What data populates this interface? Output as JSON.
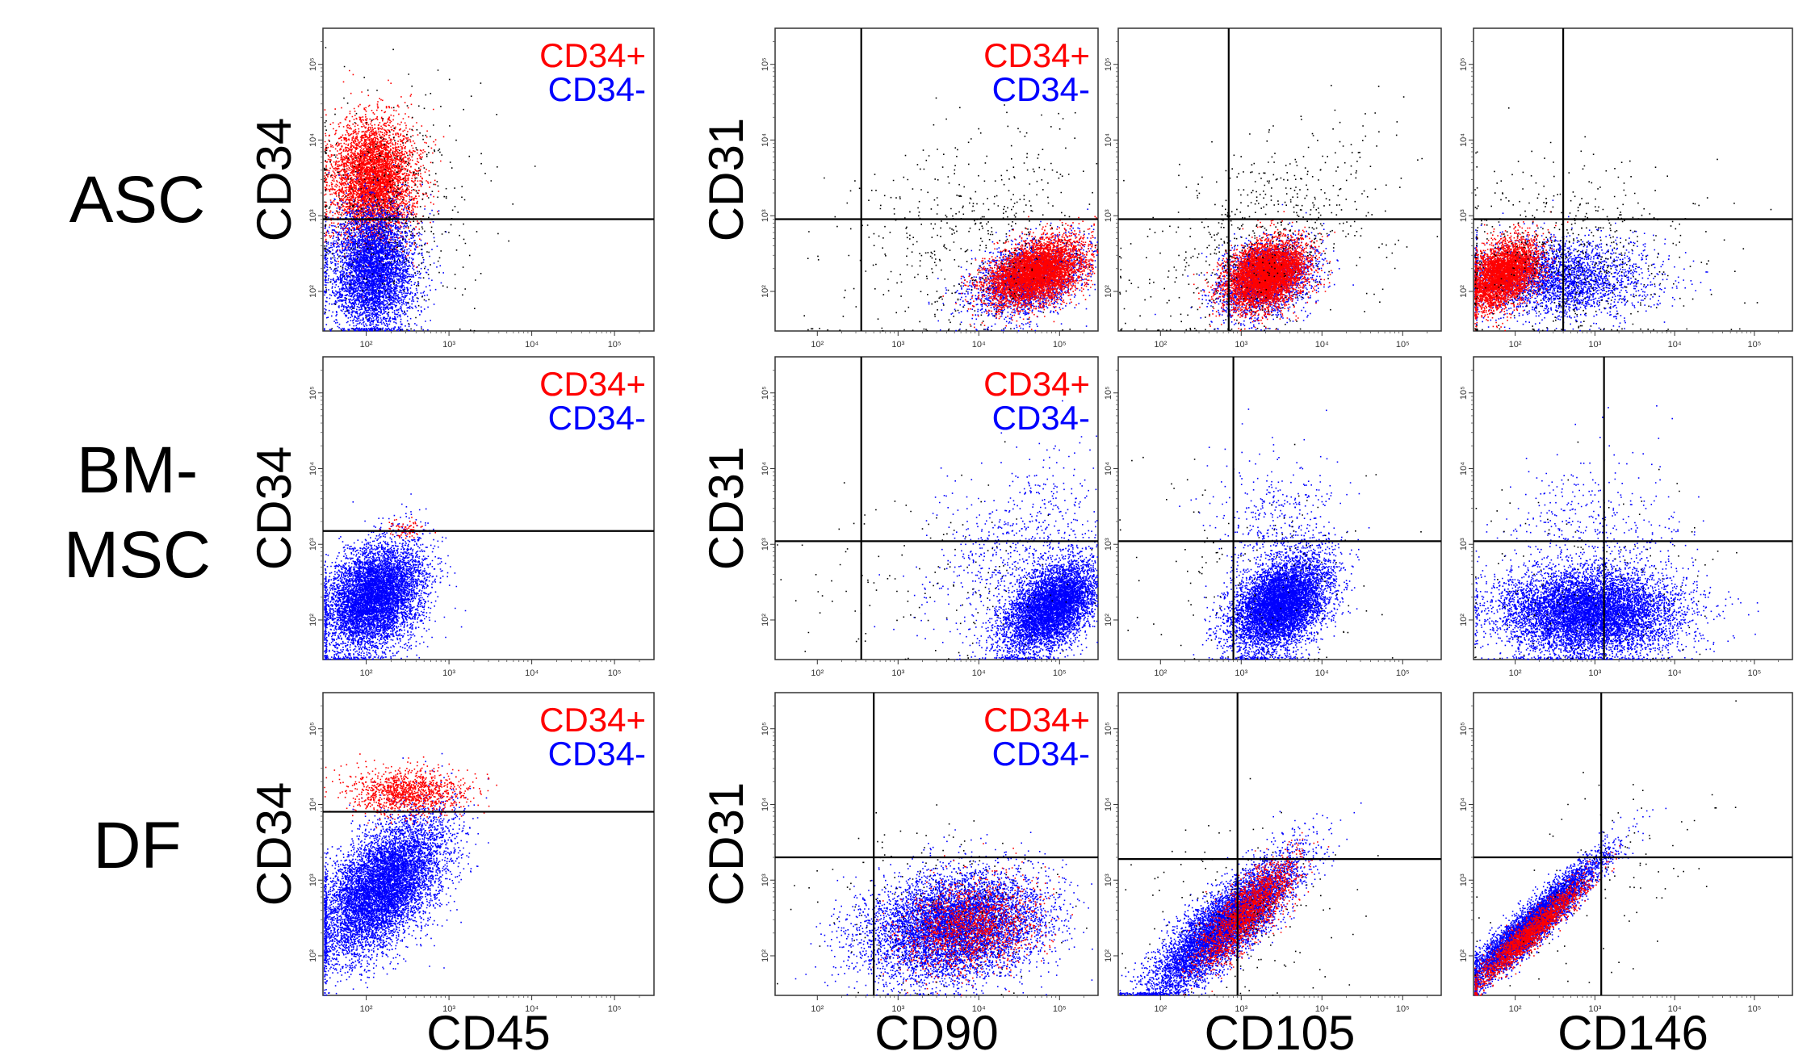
{
  "colors": {
    "pos": "#ff0000",
    "neg": "#0000ff",
    "other": "#000000"
  },
  "rows": [
    {
      "label_lines": [
        "ASC"
      ]
    },
    {
      "label_lines": [
        "BM-",
        "MSC"
      ]
    },
    {
      "label_lines": [
        "DF"
      ]
    }
  ],
  "x_axis_labels": [
    "CD45",
    "CD90",
    "CD105",
    "CD146"
  ],
  "y_axis_labels": [
    "CD34",
    "CD31",
    "",
    "",
    "CD34",
    "CD31",
    "",
    "",
    "CD34",
    "CD31",
    "",
    ""
  ],
  "legend": {
    "pos": "CD34+",
    "neg": "CD34-"
  },
  "chart_data": {
    "type": "scatter",
    "xscale": "log",
    "yscale": "log",
    "xlim": [
      30,
      300000
    ],
    "ylim": [
      30,
      300000
    ],
    "xticks": [
      "10²",
      "10³",
      "10⁴",
      "10⁵"
    ],
    "yticks": [
      "10²",
      "10³",
      "10⁴",
      "10⁵"
    ],
    "panels": [
      {
        "row": 0,
        "col": 0,
        "xlabel": "",
        "ylabel": "CD34",
        "legend": true,
        "gate_x": null,
        "gate_y": 900,
        "clusters": [
          {
            "color": "pos",
            "n": 5000,
            "cx": 120,
            "cy": 3000,
            "sx": 0.25,
            "sy": 0.4,
            "rho": 0
          },
          {
            "color": "neg",
            "n": 5000,
            "cx": 120,
            "cy": 200,
            "sx": 0.25,
            "sy": 0.4,
            "rho": 0
          },
          {
            "color": "other",
            "n": 500,
            "cx": 180,
            "cy": 1200,
            "sx": 0.55,
            "sy": 0.75,
            "rho": 0
          }
        ]
      },
      {
        "row": 0,
        "col": 1,
        "xlabel": "",
        "ylabel": "CD31",
        "legend": true,
        "gate_x": 350,
        "gate_y": 900,
        "clusters": [
          {
            "color": "neg",
            "n": 2500,
            "cx": 40000,
            "cy": 150,
            "sx": 0.35,
            "sy": 0.25,
            "rho": 0.4
          },
          {
            "color": "pos",
            "n": 5000,
            "cx": 50000,
            "cy": 180,
            "sx": 0.3,
            "sy": 0.22,
            "rho": 0.4
          },
          {
            "color": "other",
            "n": 500,
            "cx": 8000,
            "cy": 500,
            "sx": 0.8,
            "sy": 0.7,
            "rho": 0.3
          }
        ]
      },
      {
        "row": 0,
        "col": 2,
        "xlabel": "",
        "ylabel": "",
        "legend": false,
        "gate_x": 700,
        "gate_y": 900,
        "clusters": [
          {
            "color": "neg",
            "n": 2500,
            "cx": 2000,
            "cy": 150,
            "sx": 0.3,
            "sy": 0.25,
            "rho": 0.3
          },
          {
            "color": "pos",
            "n": 5000,
            "cx": 2000,
            "cy": 170,
            "sx": 0.25,
            "sy": 0.22,
            "rho": 0.3
          },
          {
            "color": "other",
            "n": 600,
            "cx": 2000,
            "cy": 600,
            "sx": 0.8,
            "sy": 0.7,
            "rho": 0.5
          }
        ]
      },
      {
        "row": 0,
        "col": 3,
        "xlabel": "",
        "ylabel": "",
        "legend": false,
        "gate_x": 400,
        "gate_y": 900,
        "clusters": [
          {
            "color": "neg",
            "n": 3000,
            "cx": 300,
            "cy": 150,
            "sx": 0.6,
            "sy": 0.25,
            "rho": 0
          },
          {
            "color": "pos",
            "n": 4000,
            "cx": 70,
            "cy": 170,
            "sx": 0.22,
            "sy": 0.22,
            "rho": 0.4
          },
          {
            "color": "other",
            "n": 600,
            "cx": 500,
            "cy": 300,
            "sx": 0.8,
            "sy": 0.6,
            "rho": 0
          }
        ]
      },
      {
        "row": 1,
        "col": 0,
        "xlabel": "",
        "ylabel": "CD34",
        "legend": true,
        "gate_x": null,
        "gate_y": 1500,
        "clusters": [
          {
            "color": "neg",
            "n": 7000,
            "cx": 120,
            "cy": 200,
            "sx": 0.3,
            "sy": 0.35,
            "rho": 0.3
          },
          {
            "color": "pos",
            "n": 80,
            "cx": 300,
            "cy": 1600,
            "sx": 0.12,
            "sy": 0.05,
            "rho": 0
          }
        ]
      },
      {
        "row": 1,
        "col": 1,
        "xlabel": "",
        "ylabel": "CD31",
        "legend": true,
        "gate_x": 350,
        "gate_y": 1100,
        "clusters": [
          {
            "color": "neg",
            "n": 6000,
            "cx": 80000,
            "cy": 150,
            "sx": 0.3,
            "sy": 0.3,
            "rho": 0.5
          },
          {
            "color": "neg",
            "n": 700,
            "cx": 30000,
            "cy": 1000,
            "sx": 0.55,
            "sy": 0.6,
            "rho": 0.4
          },
          {
            "color": "other",
            "n": 150,
            "cx": 3000,
            "cy": 300,
            "sx": 0.9,
            "sy": 0.6,
            "rho": 0
          }
        ]
      },
      {
        "row": 1,
        "col": 2,
        "xlabel": "",
        "ylabel": "",
        "legend": false,
        "gate_x": 800,
        "gate_y": 1100,
        "clusters": [
          {
            "color": "neg",
            "n": 7000,
            "cx": 3000,
            "cy": 160,
            "sx": 0.3,
            "sy": 0.3,
            "rho": 0.4
          },
          {
            "color": "neg",
            "n": 500,
            "cx": 3000,
            "cy": 1500,
            "sx": 0.4,
            "sy": 0.5,
            "rho": 0
          },
          {
            "color": "other",
            "n": 150,
            "cx": 1500,
            "cy": 400,
            "sx": 0.8,
            "sy": 0.7,
            "rho": 0
          }
        ]
      },
      {
        "row": 1,
        "col": 3,
        "xlabel": "",
        "ylabel": "",
        "legend": false,
        "gate_x": 1300,
        "gate_y": 1100,
        "clusters": [
          {
            "color": "neg",
            "n": 8000,
            "cx": 800,
            "cy": 130,
            "sx": 0.55,
            "sy": 0.28,
            "rho": 0
          },
          {
            "color": "neg",
            "n": 400,
            "cx": 1000,
            "cy": 1500,
            "sx": 0.6,
            "sy": 0.5,
            "rho": 0
          },
          {
            "color": "other",
            "n": 150,
            "cx": 1000,
            "cy": 300,
            "sx": 0.8,
            "sy": 0.6,
            "rho": 0
          }
        ]
      },
      {
        "row": 2,
        "col": 0,
        "xlabel": "CD45",
        "ylabel": "CD34",
        "legend": true,
        "gate_x": null,
        "gate_y": 8000,
        "clusters": [
          {
            "color": "neg",
            "n": 8000,
            "cx": 150,
            "cy": 800,
            "sx": 0.38,
            "sy": 0.45,
            "rho": 0.55
          },
          {
            "color": "pos",
            "n": 1200,
            "cx": 300,
            "cy": 15000,
            "sx": 0.35,
            "sy": 0.15,
            "rho": 0
          }
        ]
      },
      {
        "row": 2,
        "col": 1,
        "xlabel": "CD90",
        "ylabel": "CD31",
        "legend": true,
        "gate_x": 500,
        "gate_y": 2000,
        "clusters": [
          {
            "color": "neg",
            "n": 7000,
            "cx": 5000,
            "cy": 250,
            "sx": 0.55,
            "sy": 0.35,
            "rho": 0.2
          },
          {
            "color": "pos",
            "n": 1500,
            "cx": 8000,
            "cy": 250,
            "sx": 0.4,
            "sy": 0.3,
            "rho": 0.2
          },
          {
            "color": "other",
            "n": 200,
            "cx": 3000,
            "cy": 400,
            "sx": 0.8,
            "sy": 0.6,
            "rho": 0
          }
        ]
      },
      {
        "row": 2,
        "col": 2,
        "xlabel": "CD105",
        "ylabel": "",
        "legend": false,
        "gate_x": 900,
        "gate_y": 1900,
        "clusters": [
          {
            "color": "neg",
            "n": 7000,
            "cx": 600,
            "cy": 250,
            "sx": 0.45,
            "sy": 0.45,
            "rho": 0.85
          },
          {
            "color": "pos",
            "n": 2000,
            "cx": 1200,
            "cy": 400,
            "sx": 0.3,
            "sy": 0.35,
            "rho": 0.8
          },
          {
            "color": "other",
            "n": 150,
            "cx": 1000,
            "cy": 400,
            "sx": 0.7,
            "sy": 0.6,
            "rho": 0
          }
        ]
      },
      {
        "row": 2,
        "col": 3,
        "xlabel": "CD146",
        "ylabel": "",
        "legend": false,
        "gate_x": 1200,
        "gate_y": 2000,
        "clusters": [
          {
            "color": "neg",
            "n": 6000,
            "cx": 150,
            "cy": 250,
            "sx": 0.45,
            "sy": 0.45,
            "rho": 0.95
          },
          {
            "color": "pos",
            "n": 2000,
            "cx": 150,
            "cy": 200,
            "sx": 0.35,
            "sy": 0.35,
            "rho": 0.95
          },
          {
            "color": "other",
            "n": 100,
            "cx": 1000,
            "cy": 1000,
            "sx": 0.8,
            "sy": 0.8,
            "rho": 0.5
          }
        ]
      }
    ]
  }
}
